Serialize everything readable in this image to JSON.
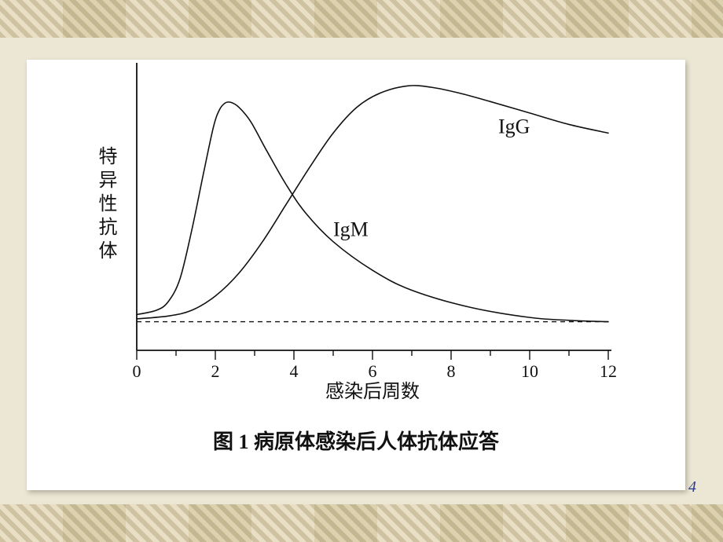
{
  "page": {
    "number": "4"
  },
  "chart": {
    "type": "line",
    "title": "图 1  病原体感染后人体抗体应答",
    "title_fontsize": 26,
    "xlabel": "感染后周数",
    "ylabel": "特异性抗体",
    "axis_label_fontsize": 24,
    "tick_fontsize": 22,
    "series_label_fontsize": 26,
    "xlim": [
      0,
      12
    ],
    "ylim": [
      0,
      100
    ],
    "xticks": [
      0,
      2,
      4,
      6,
      8,
      10,
      12
    ],
    "minor_tick_step": 1,
    "background_color": "#ffffff",
    "axis_color": "#111111",
    "line_width": 1.6,
    "dash_color": "#111111",
    "baseline_dash": "6,5",
    "baseline_y": 10,
    "series": {
      "igm": {
        "label": "IgM",
        "label_xy": [
          5.0,
          40
        ],
        "color": "#111111",
        "points": [
          [
            0,
            12.5
          ],
          [
            0.5,
            14
          ],
          [
            0.8,
            17
          ],
          [
            1.1,
            25
          ],
          [
            1.4,
            42
          ],
          [
            1.7,
            62
          ],
          [
            1.95,
            78
          ],
          [
            2.1,
            84
          ],
          [
            2.25,
            86.5
          ],
          [
            2.4,
            86.7
          ],
          [
            2.6,
            85
          ],
          [
            2.9,
            80
          ],
          [
            3.3,
            70
          ],
          [
            3.8,
            58
          ],
          [
            4.3,
            48
          ],
          [
            5.0,
            38
          ],
          [
            6.0,
            28
          ],
          [
            7.0,
            21
          ],
          [
            8.5,
            15
          ],
          [
            10.0,
            11.5
          ],
          [
            11.0,
            10.5
          ],
          [
            12.0,
            10
          ]
        ]
      },
      "igg": {
        "label": "IgG",
        "label_xy": [
          9.2,
          76
        ],
        "color": "#111111",
        "points": [
          [
            0,
            11
          ],
          [
            0.8,
            12
          ],
          [
            1.4,
            14
          ],
          [
            2.0,
            19
          ],
          [
            2.6,
            27
          ],
          [
            3.2,
            38
          ],
          [
            3.8,
            51
          ],
          [
            4.4,
            64
          ],
          [
            5.0,
            76
          ],
          [
            5.6,
            85
          ],
          [
            6.2,
            90
          ],
          [
            6.9,
            92.5
          ],
          [
            7.5,
            92
          ],
          [
            8.2,
            90
          ],
          [
            9.0,
            87
          ],
          [
            10.0,
            83
          ],
          [
            11.0,
            79
          ],
          [
            12.0,
            76
          ]
        ]
      }
    }
  }
}
